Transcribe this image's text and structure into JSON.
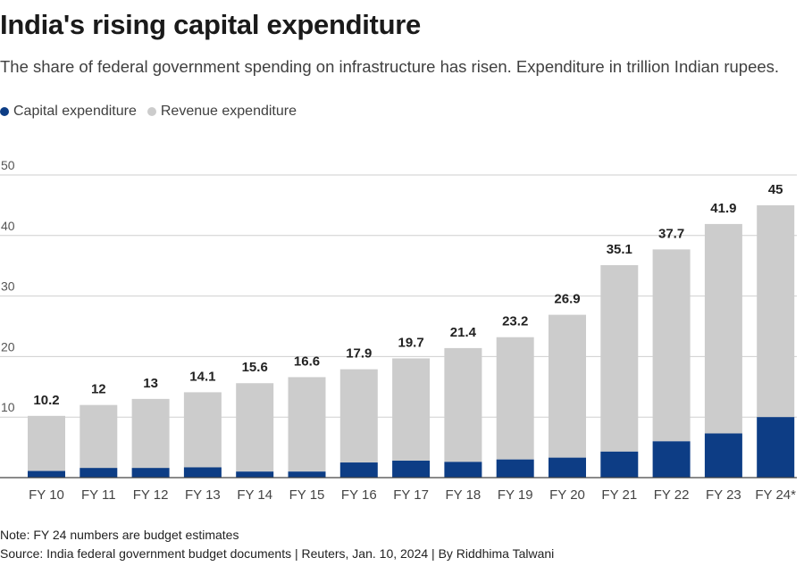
{
  "title": "India's rising capital expenditure",
  "subtitle": "The share of federal government spending on infrastructure has risen. Expenditure in trillion Indian rupees.",
  "legend": [
    {
      "label": "Capital expenditure",
      "color": "#0d3d85"
    },
    {
      "label": "Revenue expenditure",
      "color": "#cccccc"
    }
  ],
  "chart_data": {
    "type": "bar",
    "stacked": true,
    "categories": [
      "FY 10",
      "FY 11",
      "FY 12",
      "FY 13",
      "FY 14",
      "FY 15",
      "FY 16",
      "FY 17",
      "FY 18",
      "FY 19",
      "FY 20",
      "FY 21",
      "FY 22",
      "FY 23",
      "FY 24*"
    ],
    "series": [
      {
        "name": "Capital expenditure",
        "color": "#0d3d85",
        "values": [
          1.1,
          1.6,
          1.6,
          1.7,
          1.0,
          1.0,
          2.5,
          2.8,
          2.6,
          3.0,
          3.3,
          4.3,
          6.0,
          7.3,
          10.0
        ]
      },
      {
        "name": "Revenue expenditure",
        "color": "#cccccc",
        "values": [
          9.1,
          10.4,
          11.4,
          12.4,
          14.6,
          15.6,
          15.4,
          16.9,
          18.8,
          20.2,
          23.6,
          30.8,
          31.7,
          34.6,
          35.0
        ]
      }
    ],
    "totals": [
      10.2,
      12,
      13,
      14.1,
      15.6,
      16.6,
      17.9,
      19.7,
      21.4,
      23.2,
      26.9,
      35.1,
      37.7,
      41.9,
      45
    ],
    "total_labels": [
      "10.2",
      "12",
      "13",
      "14.1",
      "15.6",
      "16.6",
      "17.9",
      "19.7",
      "21.4",
      "23.2",
      "26.9",
      "35.1",
      "37.7",
      "41.9",
      "45"
    ],
    "y_ticks": [
      10,
      20,
      30,
      40,
      50
    ],
    "ylim": [
      0,
      50
    ],
    "grid": true,
    "legend_position": "top-left",
    "xlabel": "",
    "ylabel": ""
  },
  "notes": {
    "note": "Note: FY 24 numbers are budget estimates",
    "source": "Source: India federal government budget documents | Reuters, Jan. 10, 2024 | By Riddhima Talwani"
  }
}
